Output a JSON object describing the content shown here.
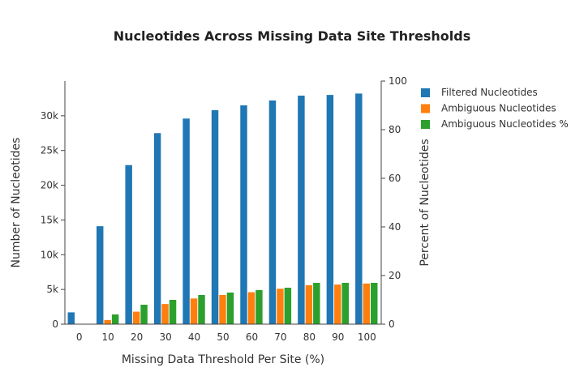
{
  "chart_data": {
    "type": "bar",
    "title": "Nucleotides Across Missing Data Site Thresholds",
    "xlabel": "Missing Data Threshold Per Site (%)",
    "ylabel": "Number of Nucleotides",
    "y2label": "Percent of Nucleotides",
    "categories": [
      "0",
      "10",
      "20",
      "30",
      "40",
      "50",
      "60",
      "70",
      "80",
      "90",
      "100"
    ],
    "ylim": [
      0,
      35000
    ],
    "y_ticks": [
      0,
      5000,
      10000,
      15000,
      20000,
      25000,
      30000
    ],
    "y_tick_labels": [
      "0",
      "5k",
      "10k",
      "15k",
      "20k",
      "25k",
      "30k"
    ],
    "y2lim": [
      0,
      100
    ],
    "y2_ticks": [
      0,
      20,
      40,
      60,
      80,
      100
    ],
    "y2_tick_labels": [
      "0",
      "20",
      "40",
      "60",
      "80",
      "100"
    ],
    "legend_position": "top-right",
    "grid": false,
    "series": [
      {
        "name": "Filtered Nucleotides",
        "axis": "left",
        "color": "#1f77b4",
        "values": [
          1700,
          14100,
          22900,
          27500,
          29600,
          30800,
          31500,
          32200,
          32900,
          33000,
          33200
        ]
      },
      {
        "name": "Ambiguous Nucleotides",
        "axis": "left",
        "color": "#ff7f0e",
        "values": [
          0,
          600,
          1800,
          2900,
          3700,
          4200,
          4600,
          5100,
          5600,
          5700,
          5850
        ]
      },
      {
        "name": "Ambiguous Nucleotides %",
        "axis": "right",
        "color": "#2ca02c",
        "values": [
          0,
          4,
          8,
          10,
          12,
          13,
          14,
          15,
          17,
          17,
          17
        ]
      }
    ]
  }
}
